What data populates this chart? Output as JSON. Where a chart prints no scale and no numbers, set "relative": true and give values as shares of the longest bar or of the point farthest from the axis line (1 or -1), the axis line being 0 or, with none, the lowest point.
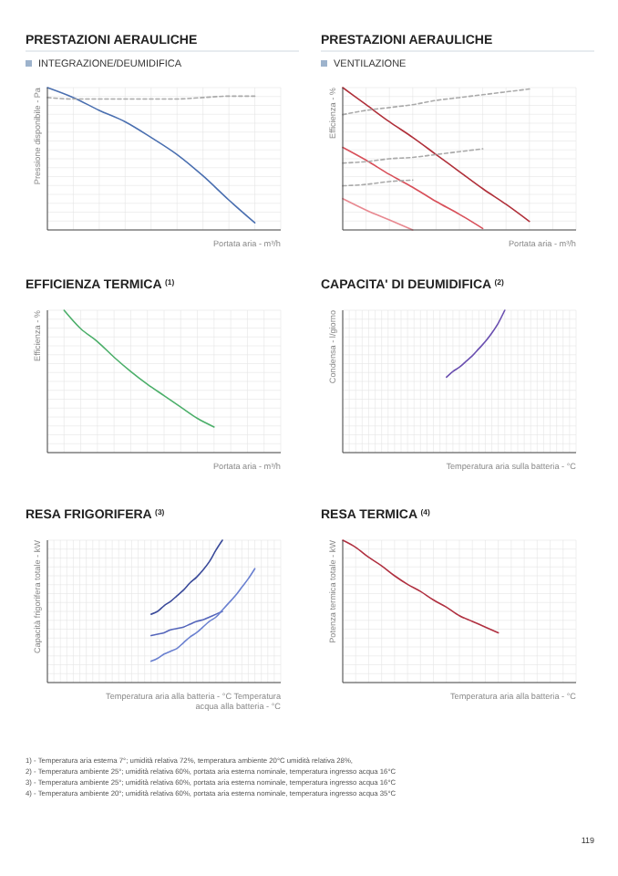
{
  "chart_data": [
    {
      "type": "line",
      "title": "PRESTAZIONI AERAULICHE",
      "subtitle": "INTEGRAZIONE/DEUMIDIFICA",
      "ylabel": "Pressione disponibile - Pa",
      "xlabel": "Portata aria - m³/h",
      "relative": true,
      "grid": true,
      "categories": [
        null,
        null,
        null,
        null,
        null,
        null,
        null,
        null,
        null,
        null
      ],
      "series": [
        {
          "color": "#4a6fb0",
          "values": [
            1,
            0.93,
            0.84,
            0.76,
            0.65,
            0.53,
            0.38,
            0.21,
            0.05,
            null
          ]
        },
        {
          "color": "#aaaaaa",
          "line_style": "dashed",
          "values": [
            0.93,
            0.92,
            0.92,
            0.92,
            0.92,
            0.92,
            0.93,
            0.94,
            0.94,
            null
          ]
        }
      ]
    },
    {
      "type": "line",
      "title": "PRESTAZIONI AERAULICHE",
      "subtitle": "VENTILAZIONE",
      "ylabel": "Efficienza - %",
      "xlabel": "Portata aria - m³/h",
      "relative": true,
      "grid": true,
      "categories": [
        null,
        null,
        null,
        null,
        null,
        null,
        null,
        null,
        null,
        null,
        null
      ],
      "series": [
        {
          "color": "#b0303a",
          "values": [
            1,
            0.88,
            0.76,
            0.65,
            0.53,
            0.41,
            0.29,
            0.18,
            0.06,
            null,
            null
          ]
        },
        {
          "color": "#d8505a",
          "values": [
            0.58,
            0.49,
            0.39,
            0.3,
            0.2,
            0.11,
            0.01,
            null,
            null,
            null,
            null
          ]
        },
        {
          "color": "#e88890",
          "values": [
            0.22,
            0.14,
            0.07,
            0,
            null,
            null,
            null,
            null,
            null,
            null,
            null
          ]
        },
        {
          "color": "#aaaaaa",
          "line_style": "dashed",
          "values": [
            0.81,
            0.84,
            0.86,
            0.88,
            0.91,
            0.93,
            0.95,
            0.97,
            0.99,
            null,
            null
          ]
        },
        {
          "color": "#aaaaaa",
          "line_style": "dashed",
          "values": [
            0.47,
            0.48,
            0.5,
            0.51,
            0.53,
            0.55,
            0.57,
            null,
            null,
            null,
            null
          ]
        },
        {
          "color": "#aaaaaa",
          "line_style": "dashed",
          "values": [
            0.31,
            0.32,
            0.34,
            0.35,
            null,
            null,
            null,
            null,
            null,
            null,
            null
          ]
        }
      ]
    },
    {
      "type": "line",
      "title": "EFFICIENZA TERMICA $^{(1)}$",
      "ylabel": "Efficienza - %",
      "xlabel": "Portata aria - m³/h",
      "relative": true,
      "grid": true,
      "categories": [
        null,
        null,
        null,
        null,
        null,
        null,
        null,
        null,
        null,
        null,
        null,
        null,
        null,
        null,
        null
      ],
      "series": [
        {
          "color": "#4caf6a",
          "values": [
            null,
            1,
            0.87,
            0.78,
            0.67,
            0.57,
            0.48,
            0.4,
            0.32,
            0.24,
            0.18,
            null,
            null,
            null,
            null
          ]
        }
      ]
    },
    {
      "type": "line",
      "title": "CAPACITA' DI DEUMIDIFICA $^{(2)}$",
      "ylabel": "Condensa - l/giorno",
      "xlabel": "Temperatura aria sulla batteria - °C",
      "relative": true,
      "grid": true,
      "categories": [
        null,
        null,
        null,
        null,
        null,
        null,
        null,
        null,
        null,
        null,
        null,
        null,
        null,
        null,
        null,
        null,
        null,
        null,
        null,
        null,
        null,
        null,
        null,
        null,
        null,
        null,
        null,
        null,
        null,
        null,
        null,
        null,
        null,
        null,
        null,
        null,
        null
      ],
      "series": [
        {
          "color": "#6a4fb0",
          "values": [
            null,
            null,
            null,
            null,
            null,
            null,
            null,
            null,
            null,
            null,
            null,
            null,
            null,
            null,
            null,
            null,
            0.53,
            0.57,
            0.6,
            0.64,
            0.68,
            0.73,
            0.78,
            0.84,
            0.91,
            1,
            null,
            null,
            null,
            null,
            null,
            null,
            null,
            null,
            null,
            null,
            null
          ]
        }
      ]
    },
    {
      "type": "line",
      "title": "RESA FRIGORIFERA $^{(3)}$",
      "ylabel": "Capacità frigorifera totale - kW",
      "xlabel": "Temperatura aria alla batteria - °C Temperatura acqua alla batteria - °C",
      "relative": true,
      "grid": true,
      "categories": [
        null,
        null,
        null,
        null,
        null,
        null,
        null,
        null,
        null,
        null,
        null,
        null,
        null,
        null,
        null,
        null,
        null,
        null,
        null,
        null,
        null,
        null,
        null,
        null,
        null,
        null,
        null,
        null,
        null,
        null,
        null,
        null,
        null,
        null,
        null,
        null,
        null
      ],
      "series": [
        {
          "color": "#3a4a9a",
          "values": [
            null,
            null,
            null,
            null,
            null,
            null,
            null,
            null,
            null,
            null,
            null,
            null,
            null,
            null,
            null,
            null,
            0.48,
            0.5,
            0.54,
            0.57,
            0.61,
            0.65,
            0.7,
            0.74,
            0.79,
            0.85,
            0.93,
            1,
            null,
            null,
            null,
            null,
            null,
            null,
            null,
            null,
            null
          ]
        },
        {
          "color": "#5566bb",
          "values": [
            null,
            null,
            null,
            null,
            null,
            null,
            null,
            null,
            null,
            null,
            null,
            null,
            null,
            null,
            null,
            null,
            0.33,
            0.34,
            0.35,
            0.37,
            0.38,
            0.39,
            0.41,
            0.43,
            0.44,
            0.46,
            0.48,
            0.5,
            null,
            null,
            null,
            null,
            null,
            null,
            null,
            null,
            null
          ]
        },
        {
          "color": "#6a80d0",
          "values": [
            null,
            null,
            null,
            null,
            null,
            null,
            null,
            null,
            null,
            null,
            null,
            null,
            null,
            null,
            null,
            null,
            0.15,
            0.17,
            0.2,
            0.22,
            0.24,
            0.28,
            0.32,
            0.35,
            0.39,
            0.43,
            0.46,
            0.51,
            0.56,
            0.61,
            0.67,
            0.73,
            0.8,
            null,
            null,
            null,
            null
          ]
        }
      ]
    },
    {
      "type": "line",
      "title": "RESA TERMICA $^{(4)}$",
      "ylabel": "Potenza termica totale - kW",
      "xlabel": "Temperatura aria alla batteria - °C",
      "relative": true,
      "grid": true,
      "categories": [
        null,
        null,
        null,
        null,
        null,
        null,
        null,
        null,
        null,
        null,
        null,
        null,
        null,
        null,
        null,
        null,
        null,
        null,
        null
      ],
      "series": [
        {
          "color": "#b03040",
          "values": [
            1,
            0.95,
            0.88,
            0.82,
            0.75,
            0.69,
            0.64,
            0.58,
            0.53,
            0.47,
            0.43,
            0.39,
            0.35,
            null,
            null,
            null,
            null,
            null,
            null
          ]
        }
      ],
      "annotations": [
        "1) - Temperatura aria esterna 7°; umidità relativa 72%, temperatura ambiente 20°C umidità relativa 28%,",
        "2) - Temperatura ambiente 25°; umidità relativa 60%, portata aria esterna nominale, temperatura ingresso acqua 16°C",
        "3) - Temperatura ambiente 25°; umidità relativa 60%, portata aria esterna nominale, temperatura ingresso acqua 16°C",
        "4) - Temperatura ambiente 20°; umidità relativa 60%, portata aria esterna nominale, temperatura ingresso acqua 35°C",
        "119"
      ]
    }
  ]
}
